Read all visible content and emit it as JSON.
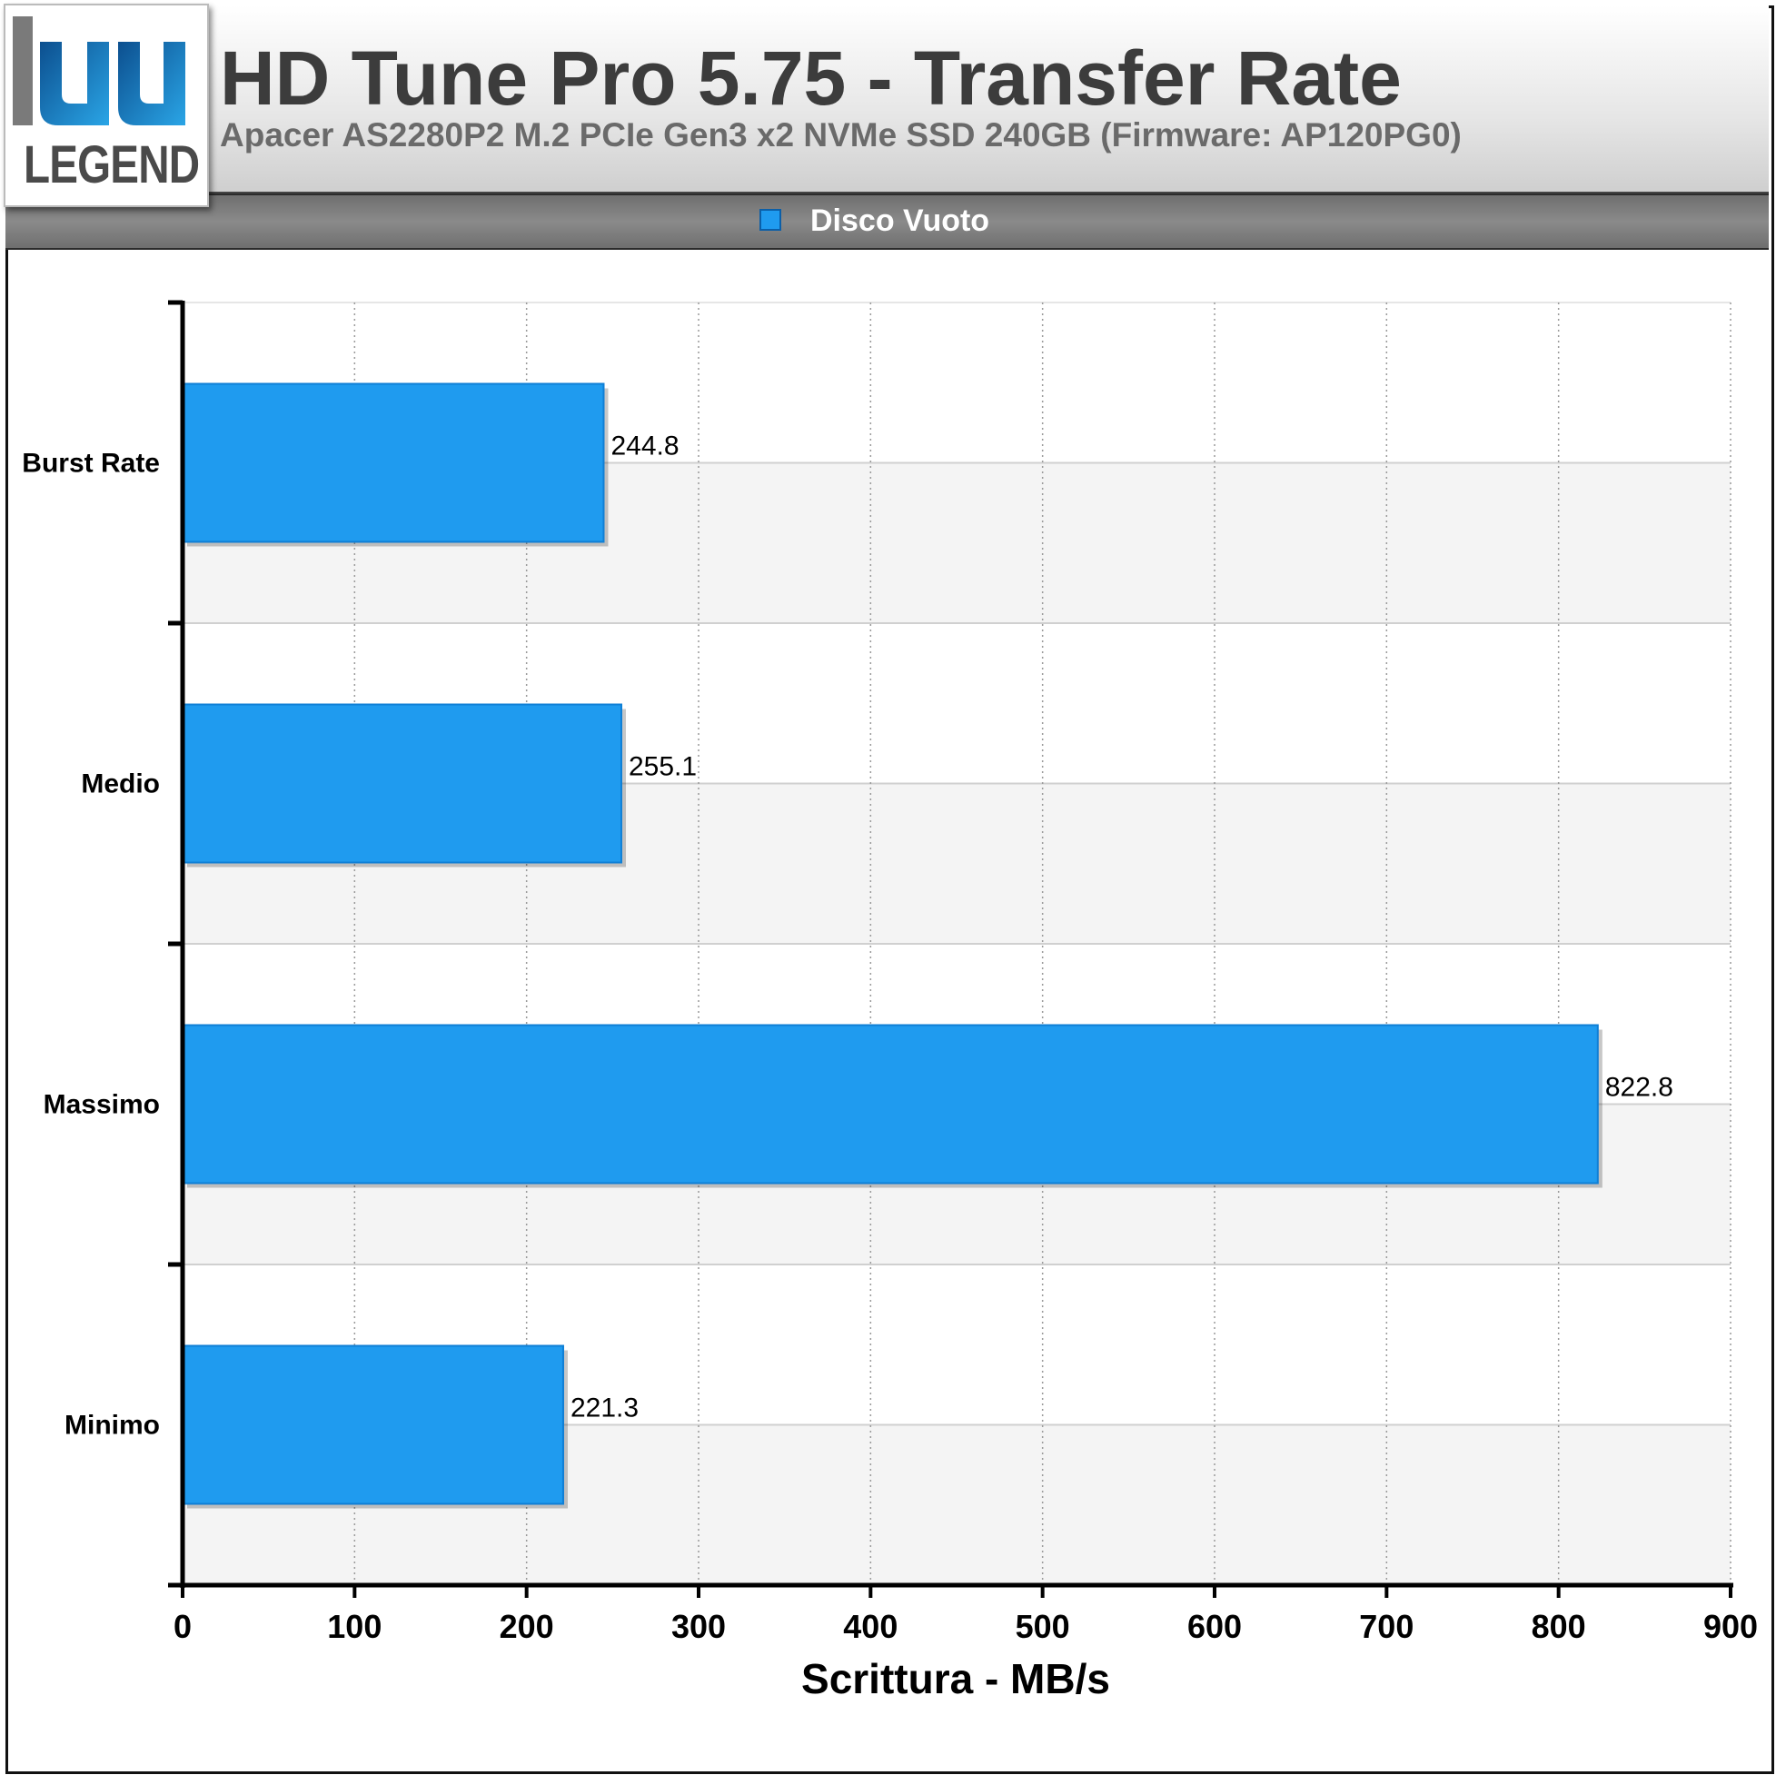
{
  "logo": {
    "text": "LEGEND",
    "brand_color": "#1b7fc4"
  },
  "header": {
    "title": "HD Tune Pro 5.75 - Transfer Rate",
    "subtitle": "Apacer AS2280P2 M.2 PCIe Gen3 x2 NVMe SSD 240GB (Firmware: AP120PG0)"
  },
  "legend": {
    "label": "Disco Vuoto",
    "color": "#1f9bef"
  },
  "chart_data": {
    "type": "bar",
    "orientation": "horizontal",
    "categories": [
      "Burst Rate",
      "Medio",
      "Massimo",
      "Minimo"
    ],
    "series": [
      {
        "name": "Disco Vuoto",
        "values": [
          244.8,
          255.1,
          822.8,
          221.3
        ],
        "color": "#1f9bef"
      }
    ],
    "value_labels": [
      "244.8",
      "255.1",
      "822.8",
      "221.3"
    ],
    "xlabel": "Scrittura - MB/s",
    "ylabel": "",
    "xlim": [
      0,
      900
    ],
    "xticks": [
      0,
      100,
      200,
      300,
      400,
      500,
      600,
      700,
      800,
      900
    ],
    "grid": true,
    "legend_position": "top"
  }
}
